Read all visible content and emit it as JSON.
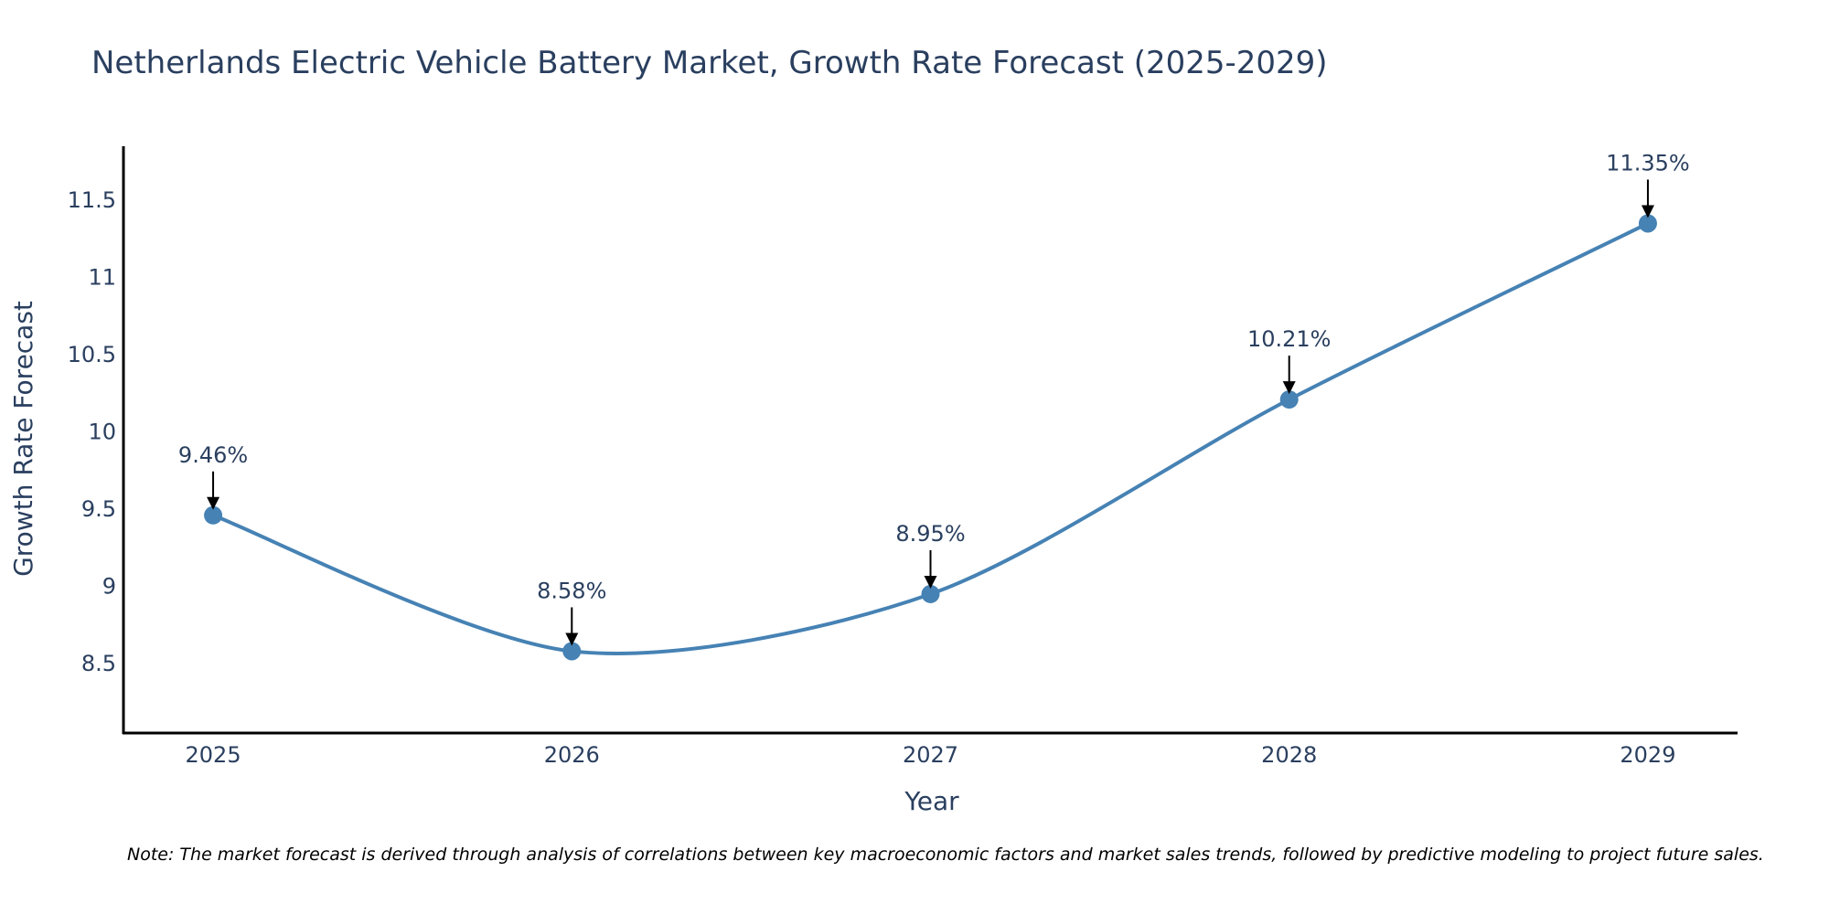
{
  "chart_data": {
    "type": "line",
    "title": "Netherlands Electric Vehicle Battery Market, Growth Rate Forecast (2025-2029)",
    "xlabel": "Year",
    "ylabel": "Growth Rate Forecast",
    "categories": [
      "2025",
      "2026",
      "2027",
      "2028",
      "2029"
    ],
    "series": [
      {
        "name": "Growth Rate Forecast",
        "values": [
          9.46,
          8.58,
          8.95,
          10.21,
          11.35
        ],
        "color": "#4682b4"
      }
    ],
    "data_labels": [
      "9.46%",
      "8.58%",
      "8.95%",
      "10.21%",
      "11.35%"
    ],
    "y_ticks": [
      8.5,
      9,
      9.5,
      10,
      10.5,
      11,
      11.5
    ],
    "y_tick_labels": [
      "8.5",
      "9",
      "9.5",
      "10",
      "10.5",
      "11",
      "11.5"
    ],
    "ylim": [
      8.05,
      11.85
    ],
    "x_range": [
      -0.25,
      4.25
    ],
    "grid": false,
    "note": "Note: The market forecast is derived through analysis of correlations between key macroeconomic factors and market sales trends, followed by predictive modeling to project future sales."
  }
}
